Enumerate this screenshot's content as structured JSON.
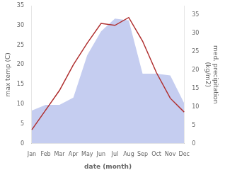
{
  "chart_data": {
    "type": "line",
    "categories": [
      "Jan",
      "Feb",
      "Mar",
      "Apr",
      "May",
      "Jun",
      "Jul",
      "Aug",
      "Sep",
      "Oct",
      "Nov",
      "Dec"
    ],
    "series": [
      {
        "type": "area",
        "color": "#c5cdf0",
        "axis": "y2",
        "values": [
          9.0,
          10.5,
          10.5,
          12.5,
          24.0,
          30.5,
          34.0,
          33.5,
          19.0,
          19.0,
          18.5,
          11.0
        ]
      },
      {
        "type": "line",
        "color": "#b03030",
        "values": [
          3.5,
          8.5,
          13.5,
          20.0,
          25.5,
          30.5,
          30.0,
          32.0,
          26.0,
          18.0,
          11.5,
          8.0
        ]
      }
    ],
    "xlabel": "date (month)",
    "ylabel": "max temp (C)",
    "y2label": "med. precipitation\n(kg/m2)",
    "ylim": [
      0,
      35
    ],
    "yticks": [
      0,
      5,
      10,
      15,
      20,
      25,
      30,
      35
    ],
    "y2lim": [
      0,
      37.5
    ],
    "y2ticks": [
      0,
      5,
      10,
      15,
      20,
      25,
      30,
      35
    ],
    "grid": false
  }
}
